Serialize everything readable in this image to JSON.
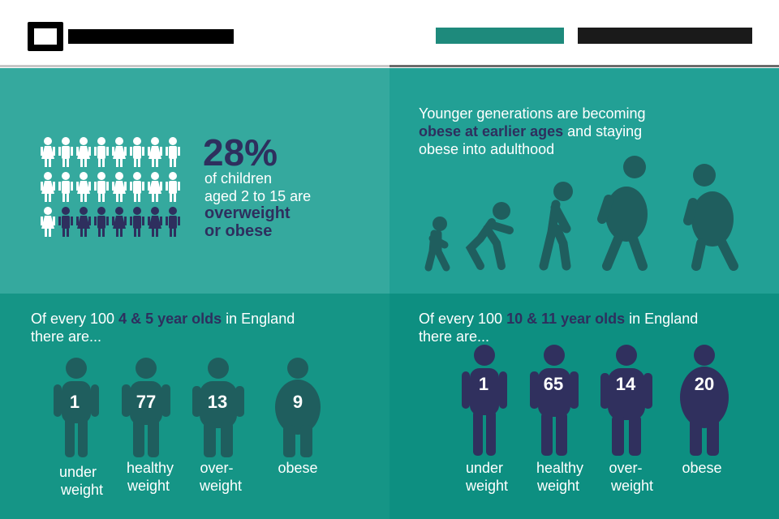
{
  "header": {
    "logo_alt": "logo",
    "tag1_color": "#1e8a7c",
    "tag2_color": "#1a1a1a"
  },
  "top_left": {
    "percent": "28%",
    "line1": "of children",
    "line2": "aged 2 to 15 are",
    "line3": "overweight",
    "line4": "or obese",
    "colors": {
      "normal": "#ffffff",
      "highlight": "#2e2f5e"
    },
    "grid": {
      "rows": 3,
      "cols": 8,
      "highlighted": 7
    }
  },
  "top_right": {
    "line1": "Younger generations are becoming",
    "line2_highlight": "obese at earlier ages",
    "line2_rest": " and staying",
    "line3": "obese into adulthood"
  },
  "bottom_left": {
    "intro_pre": "Of every 100 ",
    "intro_hl": "4 & 5 year olds",
    "intro_post": " in England",
    "intro_line2": "there are...",
    "figures": [
      {
        "value": "1",
        "label1": "under",
        "label2": "weight"
      },
      {
        "value": "77",
        "label1": "healthy",
        "label2": "weight"
      },
      {
        "value": "13",
        "label1": "over-",
        "label2": "weight"
      },
      {
        "value": "9",
        "label1": "obese",
        "label2": ""
      }
    ]
  },
  "bottom_right": {
    "intro_pre": "Of every 100 ",
    "intro_hl": "10 & 11 year olds",
    "intro_post": " in England",
    "intro_line2": "there are...",
    "figures": [
      {
        "value": "1",
        "label1": "under",
        "label2": "weight"
      },
      {
        "value": "65",
        "label1": "healthy",
        "label2": "weight"
      },
      {
        "value": "14",
        "label1": "over-",
        "label2": "weight"
      },
      {
        "value": "20",
        "label1": "obese",
        "label2": ""
      }
    ]
  }
}
